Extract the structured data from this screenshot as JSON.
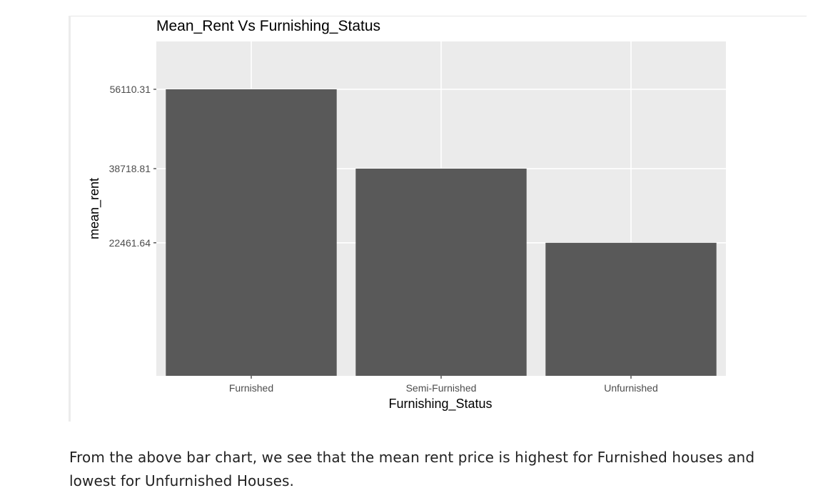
{
  "chart_data": {
    "type": "bar",
    "title": "Mean_Rent Vs Furnishing_Status",
    "xlabel": "Furnishing_Status",
    "ylabel": "mean_rent",
    "categories": [
      "Furnished",
      "Semi-Furnished",
      "Unfurnished"
    ],
    "values": [
      56110.31,
      38718.81,
      22461.64
    ],
    "yticks": [
      22461.64,
      38718.81,
      56110.31
    ],
    "ytick_labels": [
      "22461.64",
      "38718.81",
      "56110.31"
    ],
    "ylim": [
      -6700,
      66600
    ],
    "grid": true,
    "colors": {
      "bar": "#595959",
      "panel": "#ebebeb",
      "grid": "#ffffff"
    }
  },
  "caption": "From the above bar chart, we see that the mean rent price is highest for Furnished houses and lowest for Unfurnished Houses."
}
